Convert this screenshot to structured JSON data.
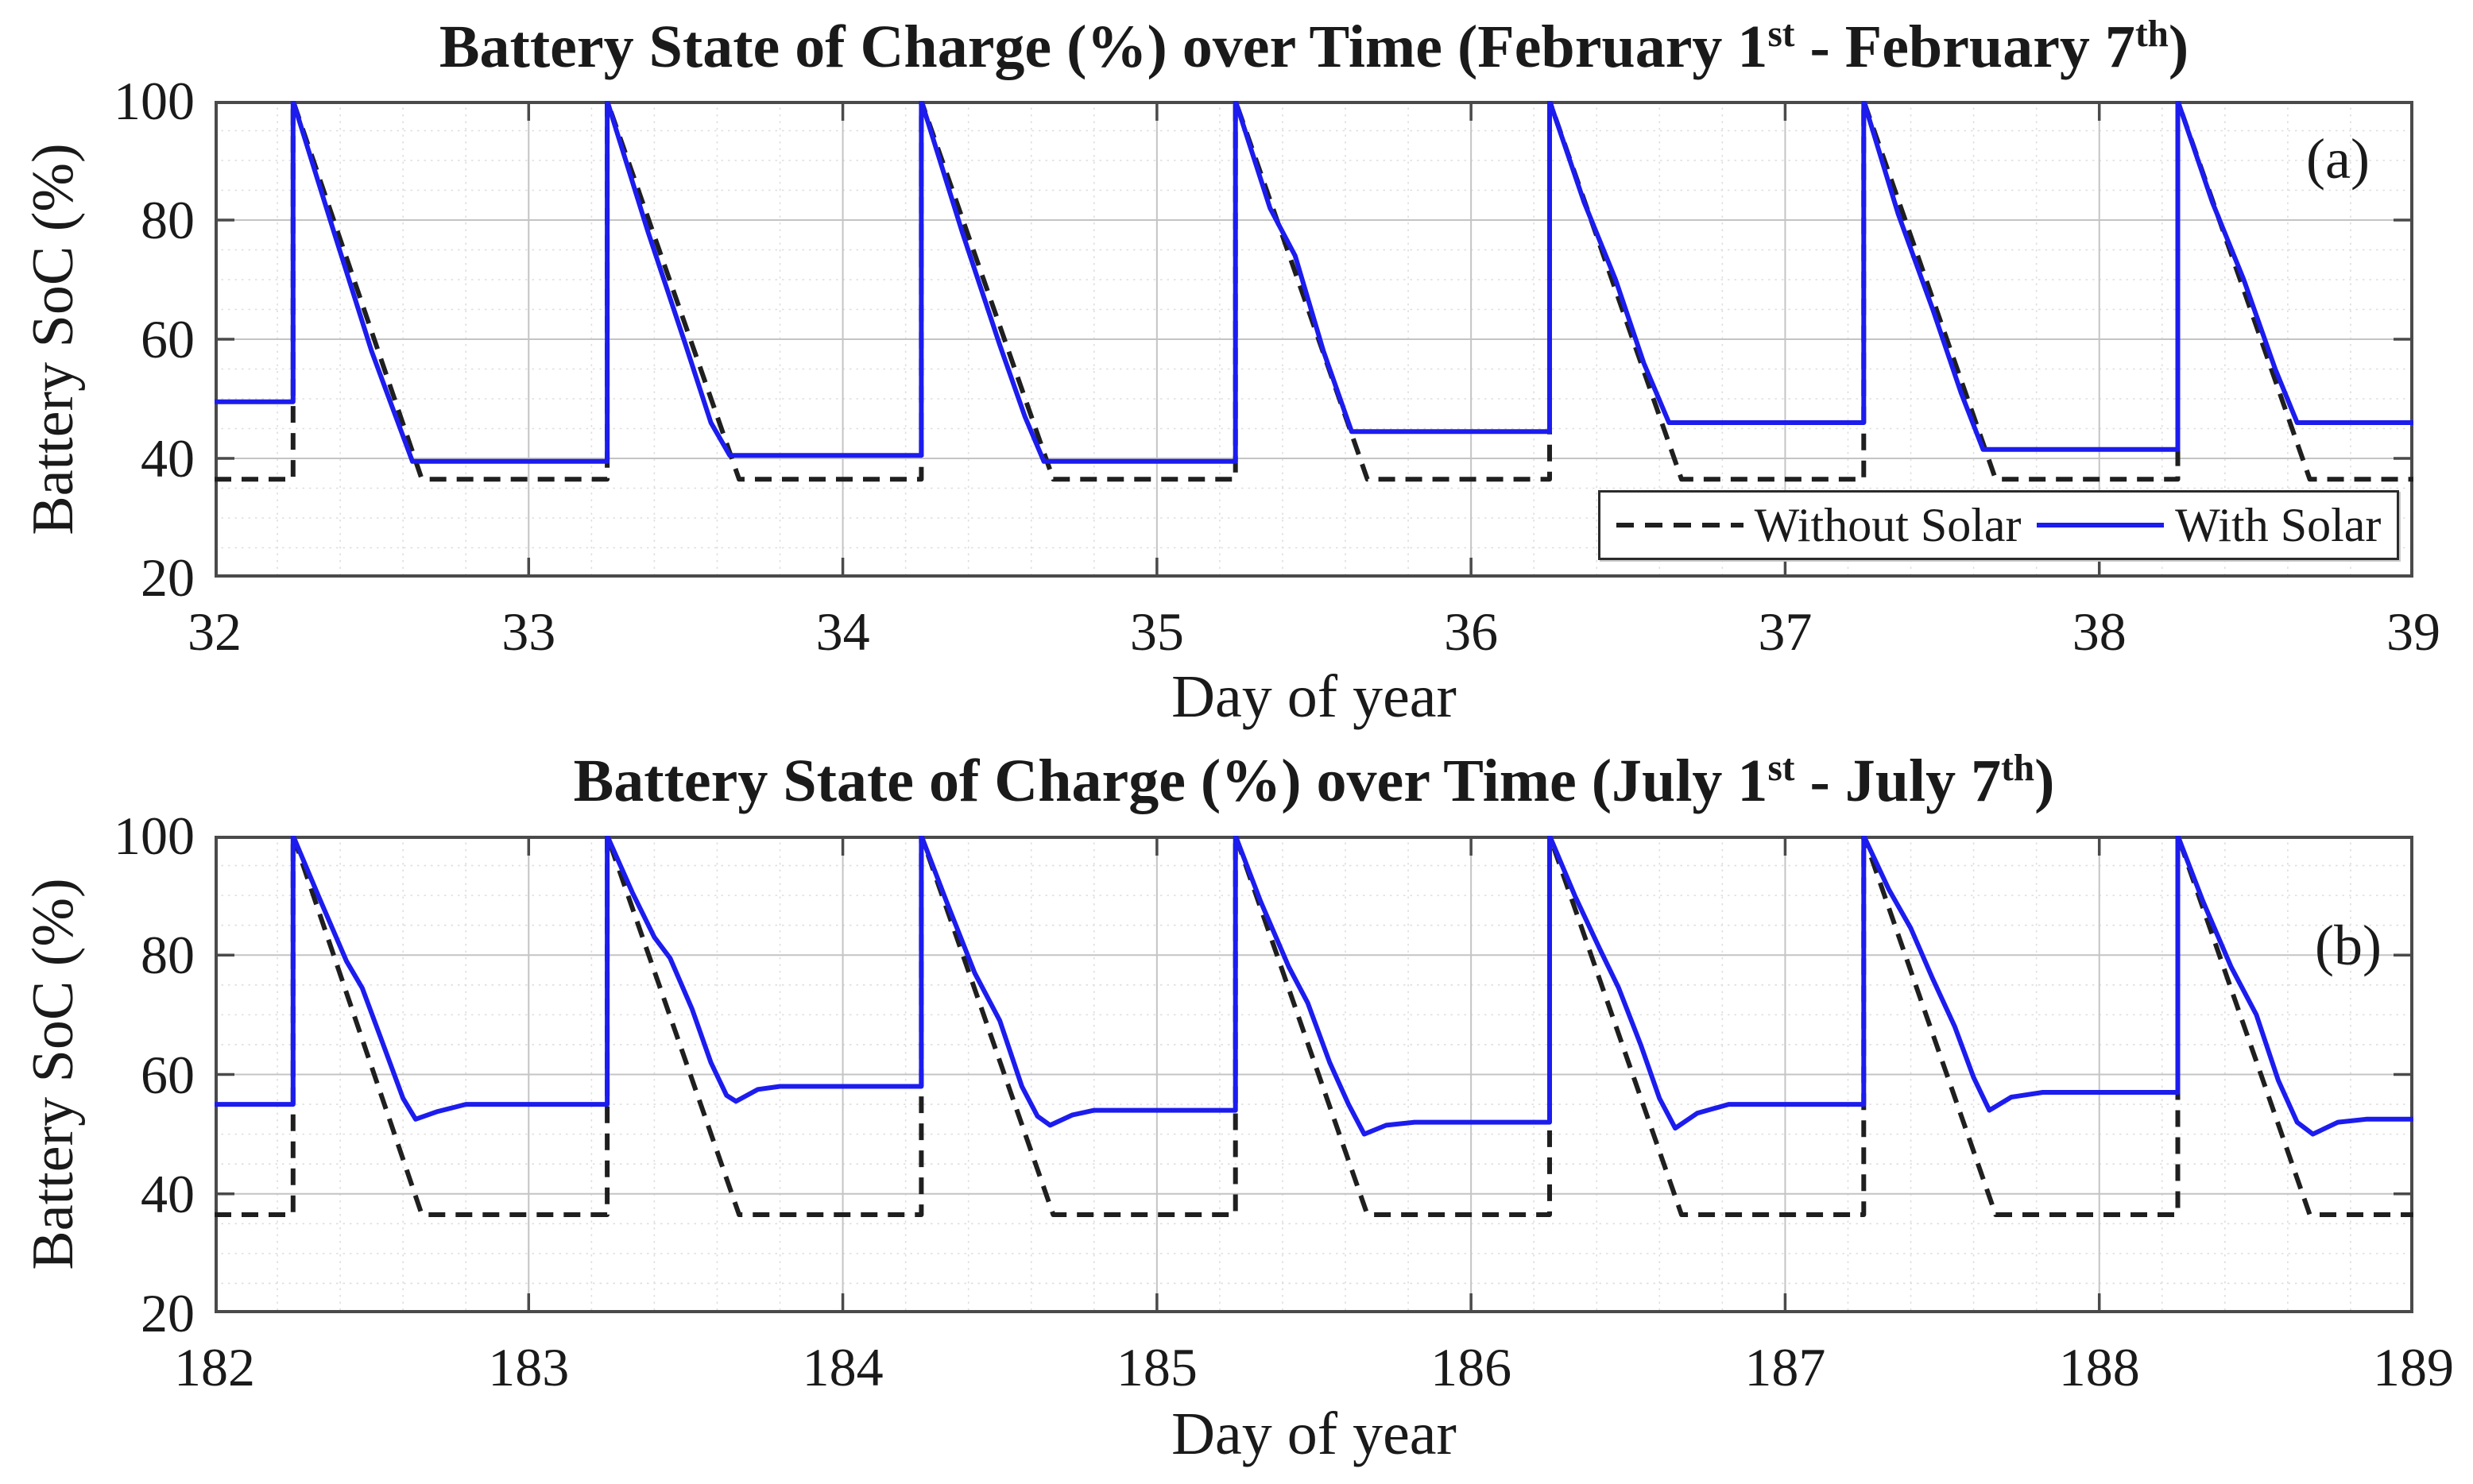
{
  "figure": {
    "background": "#ffffff",
    "panel_letters": [
      "(a)",
      "(b)"
    ]
  },
  "styles": {
    "with_solar_color": "#1c1cee",
    "without_solar_color": "#1f1f1f",
    "axis_color": "#4a4a4a",
    "major_grid_color": "#c4c4c4",
    "minor_grid_color": "#dedede",
    "text_color": "#1a1a1a"
  },
  "chart_data": [
    {
      "type": "line",
      "panel_label": "(a)",
      "title": "Battery State of Charge (%) over Time (February 1st - February 7th)",
      "title_parts": {
        "pre": "Battery State of Charge (%) over Time (February 1",
        "sup1": "st",
        "mid": " - February 7",
        "sup2": "th",
        "post": ")"
      },
      "xlabel": "Day of year",
      "ylabel": "Battery SoC (%)",
      "xlim": [
        32,
        39
      ],
      "ylim": [
        20,
        100
      ],
      "xticks": [
        32,
        33,
        34,
        35,
        36,
        37,
        38,
        39
      ],
      "yticks": [
        20,
        40,
        60,
        80,
        100
      ],
      "minor_x_step": 0.2,
      "minor_y_step": 5,
      "grid": "major and minor",
      "legend_position": "bottom-right inside axes",
      "legend": {
        "entries": [
          {
            "label": "Without Solar",
            "style": "dashed",
            "color": "#1f1f1f"
          },
          {
            "label": "With Solar",
            "style": "solid",
            "color": "#1c1cee"
          }
        ]
      },
      "series": [
        {
          "name": "Without Solar",
          "style": "dashed",
          "color": "#1f1f1f",
          "points": [
            [
              32,
              36.5
            ],
            [
              32.25,
              36.5
            ],
            [
              32.25,
              100
            ],
            [
              32.66,
              36.5
            ],
            [
              33.25,
              36.5
            ],
            [
              33.25,
              100
            ],
            [
              33.67,
              36.5
            ],
            [
              34.25,
              36.5
            ],
            [
              34.25,
              100
            ],
            [
              34.67,
              36.5
            ],
            [
              35.25,
              36.5
            ],
            [
              35.25,
              100
            ],
            [
              35.67,
              36.5
            ],
            [
              36.25,
              36.5
            ],
            [
              36.25,
              100
            ],
            [
              36.67,
              36.5
            ],
            [
              37.25,
              36.5
            ],
            [
              37.25,
              100
            ],
            [
              37.67,
              36.5
            ],
            [
              38.25,
              36.5
            ],
            [
              38.25,
              100
            ],
            [
              38.67,
              36.5
            ],
            [
              39,
              36.5
            ]
          ]
        },
        {
          "name": "With Solar",
          "style": "solid",
          "color": "#1c1cee",
          "points": [
            [
              32,
              49.5
            ],
            [
              32.25,
              49.5
            ],
            [
              32.25,
              100
            ],
            [
              32.38,
              78
            ],
            [
              32.5,
              58
            ],
            [
              32.57,
              48
            ],
            [
              32.63,
              39.5
            ],
            [
              33.25,
              39.5
            ],
            [
              33.25,
              100
            ],
            [
              33.38,
              78
            ],
            [
              33.5,
              59
            ],
            [
              33.58,
              46
            ],
            [
              33.64,
              40.5
            ],
            [
              34.25,
              40.5
            ],
            [
              34.25,
              100
            ],
            [
              34.38,
              78
            ],
            [
              34.5,
              59
            ],
            [
              34.58,
              47
            ],
            [
              34.64,
              39.5
            ],
            [
              35.25,
              39.5
            ],
            [
              35.25,
              100
            ],
            [
              35.36,
              82
            ],
            [
              35.44,
              74
            ],
            [
              35.53,
              58
            ],
            [
              35.62,
              44.5
            ],
            [
              36.25,
              44.5
            ],
            [
              36.25,
              100
            ],
            [
              36.36,
              83
            ],
            [
              36.46,
              70
            ],
            [
              36.55,
              56
            ],
            [
              36.63,
              46
            ],
            [
              37.25,
              46
            ],
            [
              37.25,
              100
            ],
            [
              37.36,
              81
            ],
            [
              37.47,
              65
            ],
            [
              37.56,
              51
            ],
            [
              37.63,
              41.5
            ],
            [
              38.25,
              41.5
            ],
            [
              38.25,
              100
            ],
            [
              38.36,
              83
            ],
            [
              38.46,
              70
            ],
            [
              38.56,
              55
            ],
            [
              38.63,
              46
            ],
            [
              39,
              46
            ]
          ]
        }
      ]
    },
    {
      "type": "line",
      "panel_label": "(b)",
      "title": "Battery State of Charge (%) over Time (July 1st - July 7th)",
      "title_parts": {
        "pre": "Battery State of Charge (%) over Time (July 1",
        "sup1": "st",
        "mid": " - July 7",
        "sup2": "th",
        "post": ")"
      },
      "xlabel": "Day of year",
      "ylabel": "Battery SoC (%)",
      "xlim": [
        182,
        189
      ],
      "ylim": [
        20,
        100
      ],
      "xticks": [
        182,
        183,
        184,
        185,
        186,
        187,
        188,
        189
      ],
      "yticks": [
        20,
        40,
        60,
        80,
        100
      ],
      "minor_x_step": 0.2,
      "minor_y_step": 5,
      "grid": "major and minor",
      "legend_position": "none",
      "series": [
        {
          "name": "Without Solar",
          "style": "dashed",
          "color": "#1f1f1f",
          "points": [
            [
              182,
              36.5
            ],
            [
              182.25,
              36.5
            ],
            [
              182.25,
              100
            ],
            [
              182.66,
              36.5
            ],
            [
              183.25,
              36.5
            ],
            [
              183.25,
              100
            ],
            [
              183.67,
              36.5
            ],
            [
              184.25,
              36.5
            ],
            [
              184.25,
              100
            ],
            [
              184.67,
              36.5
            ],
            [
              185.25,
              36.5
            ],
            [
              185.25,
              100
            ],
            [
              185.67,
              36.5
            ],
            [
              186.25,
              36.5
            ],
            [
              186.25,
              100
            ],
            [
              186.67,
              36.5
            ],
            [
              187.25,
              36.5
            ],
            [
              187.25,
              100
            ],
            [
              187.67,
              36.5
            ],
            [
              188.25,
              36.5
            ],
            [
              188.25,
              100
            ],
            [
              188.67,
              36.5
            ],
            [
              189,
              36.5
            ]
          ]
        },
        {
          "name": "With Solar",
          "style": "solid",
          "color": "#1c1cee",
          "points": [
            [
              182,
              55
            ],
            [
              182.25,
              55
            ],
            [
              182.25,
              100
            ],
            [
              182.33,
              90
            ],
            [
              182.42,
              79
            ],
            [
              182.47,
              74.5
            ],
            [
              182.53,
              66
            ],
            [
              182.6,
              56
            ],
            [
              182.64,
              52.5
            ],
            [
              182.71,
              53.8
            ],
            [
              182.8,
              55
            ],
            [
              183.25,
              55
            ],
            [
              183.25,
              100
            ],
            [
              183.33,
              90.5
            ],
            [
              183.4,
              83
            ],
            [
              183.45,
              79.5
            ],
            [
              183.52,
              71
            ],
            [
              183.58,
              62
            ],
            [
              183.63,
              56.5
            ],
            [
              183.66,
              55.5
            ],
            [
              183.73,
              57.5
            ],
            [
              183.8,
              58
            ],
            [
              184.25,
              58
            ],
            [
              184.25,
              100
            ],
            [
              184.33,
              89
            ],
            [
              184.42,
              77
            ],
            [
              184.5,
              69
            ],
            [
              184.57,
              58
            ],
            [
              184.62,
              53
            ],
            [
              184.66,
              51.5
            ],
            [
              184.73,
              53.2
            ],
            [
              184.8,
              54
            ],
            [
              185.25,
              54
            ],
            [
              185.25,
              100
            ],
            [
              185.33,
              89
            ],
            [
              185.42,
              78
            ],
            [
              185.48,
              72
            ],
            [
              185.55,
              62
            ],
            [
              185.61,
              55
            ],
            [
              185.66,
              50
            ],
            [
              185.73,
              51.5
            ],
            [
              185.82,
              52
            ],
            [
              186.25,
              52
            ],
            [
              186.25,
              100
            ],
            [
              186.33,
              90
            ],
            [
              186.41,
              81
            ],
            [
              186.47,
              74.5
            ],
            [
              186.54,
              65
            ],
            [
              186.6,
              56
            ],
            [
              186.65,
              51
            ],
            [
              186.72,
              53.5
            ],
            [
              186.82,
              55
            ],
            [
              187.25,
              55
            ],
            [
              187.25,
              100
            ],
            [
              187.33,
              91
            ],
            [
              187.4,
              84.5
            ],
            [
              187.47,
              76
            ],
            [
              187.54,
              68
            ],
            [
              187.6,
              59.5
            ],
            [
              187.65,
              54
            ],
            [
              187.72,
              56.2
            ],
            [
              187.82,
              57
            ],
            [
              188.25,
              57
            ],
            [
              188.25,
              100
            ],
            [
              188.33,
              89
            ],
            [
              188.42,
              78
            ],
            [
              188.5,
              70
            ],
            [
              188.57,
              59
            ],
            [
              188.63,
              52
            ],
            [
              188.68,
              50
            ],
            [
              188.76,
              52
            ],
            [
              188.85,
              52.5
            ],
            [
              189,
              52.5
            ]
          ]
        }
      ]
    }
  ]
}
